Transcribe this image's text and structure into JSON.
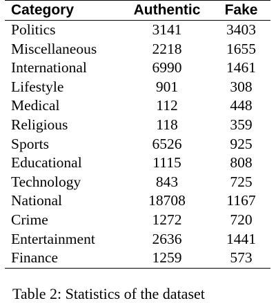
{
  "table": {
    "headers": [
      "Category",
      "Authentic",
      "Fake"
    ],
    "rows": [
      [
        "Politics",
        "3141",
        "3403"
      ],
      [
        "Miscellaneous",
        "2218",
        "1655"
      ],
      [
        "International",
        "6990",
        "1461"
      ],
      [
        "Lifestyle",
        "901",
        "308"
      ],
      [
        "Medical",
        "112",
        "448"
      ],
      [
        "Religious",
        "118",
        "359"
      ],
      [
        "Sports",
        "6526",
        "925"
      ],
      [
        "Educational",
        "1115",
        "808"
      ],
      [
        "Technology",
        "843",
        "725"
      ],
      [
        "National",
        "18708",
        "1167"
      ],
      [
        "Crime",
        "1272",
        "720"
      ],
      [
        "Entertainment",
        "2636",
        "1441"
      ],
      [
        "Finance",
        "1259",
        "573"
      ]
    ]
  },
  "caption": "Table 2: Statistics of the dataset"
}
